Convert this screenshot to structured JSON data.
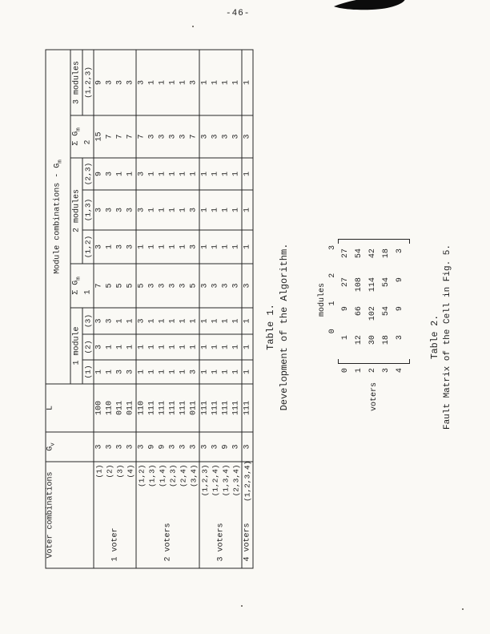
{
  "page": {
    "number": "-46-"
  },
  "table1": {
    "caption": {
      "title": "Table 1.",
      "subtitle": "Development of the Algorithm."
    },
    "header": {
      "voter_combinations": "Voter combinations",
      "gv_base": "G",
      "gv_sub": "v",
      "l": "L",
      "module_combinations_base": "Module combinations - G",
      "module_combinations_sub": "m",
      "one_module": "1 module",
      "two_modules": "2 modules",
      "three_modules": "3 modules",
      "sigma_base": "Σ G",
      "sigma_sub": "m",
      "sigma1_index": "1",
      "sigma2_index": "2",
      "subcols": [
        "(1)",
        "(2)",
        "(3)",
        "(1,2)",
        "(1,3)",
        "(2,3)",
        "(1,2,3)"
      ]
    },
    "groups": [
      {
        "label": "1 voter",
        "rows": [
          {
            "combo": "(1)",
            "gv": "3",
            "l": "100",
            "modules": [
              "1",
              "3",
              "3"
            ],
            "sum1": "7",
            "pairs": [
              "3",
              "3",
              "9"
            ],
            "sum2": "15",
            "triple": "9"
          },
          {
            "combo": "(2)",
            "gv": "3",
            "l": "110",
            "modules": [
              "1",
              "1",
              "3"
            ],
            "sum1": "5",
            "pairs": [
              "1",
              "3",
              "3"
            ],
            "sum2": "7",
            "triple": "3"
          },
          {
            "combo": "(3)",
            "gv": "3",
            "l": "011",
            "modules": [
              "3",
              "1",
              "1"
            ],
            "sum1": "5",
            "pairs": [
              "3",
              "3",
              "1"
            ],
            "sum2": "7",
            "triple": "3"
          },
          {
            "combo": "(4)",
            "gv": "3",
            "l": "011",
            "modules": [
              "3",
              "1",
              "1"
            ],
            "sum1": "5",
            "pairs": [
              "3",
              "3",
              "1"
            ],
            "sum2": "7",
            "triple": "3"
          }
        ]
      },
      {
        "label": "2 voters",
        "rows": [
          {
            "combo": "(1,2)",
            "gv": "3",
            "l": "110",
            "modules": [
              "1",
              "1",
              "3"
            ],
            "sum1": "5",
            "pairs": [
              "1",
              "3",
              "3"
            ],
            "sum2": "7",
            "triple": "3"
          },
          {
            "combo": "(1,3)",
            "gv": "9",
            "l": "111",
            "modules": [
              "1",
              "1",
              "1"
            ],
            "sum1": "3",
            "pairs": [
              "1",
              "1",
              "1"
            ],
            "sum2": "3",
            "triple": "1"
          },
          {
            "combo": "(1,4)",
            "gv": "9",
            "l": "111",
            "modules": [
              "1",
              "1",
              "1"
            ],
            "sum1": "3",
            "pairs": [
              "1",
              "1",
              "1"
            ],
            "sum2": "3",
            "triple": "1"
          },
          {
            "combo": "(2,3)",
            "gv": "3",
            "l": "111",
            "modules": [
              "1",
              "1",
              "1"
            ],
            "sum1": "3",
            "pairs": [
              "1",
              "1",
              "1"
            ],
            "sum2": "3",
            "triple": "1"
          },
          {
            "combo": "(2,4)",
            "gv": "3",
            "l": "111",
            "modules": [
              "1",
              "1",
              "1"
            ],
            "sum1": "3",
            "pairs": [
              "1",
              "1",
              "1"
            ],
            "sum2": "3",
            "triple": "1"
          },
          {
            "combo": "(3,4)",
            "gv": "3",
            "l": "011",
            "modules": [
              "3",
              "1",
              "1"
            ],
            "sum1": "5",
            "pairs": [
              "3",
              "3",
              "1"
            ],
            "sum2": "7",
            "triple": "3"
          }
        ]
      },
      {
        "label": "3 voters",
        "rows": [
          {
            "combo": "(1,2,3)",
            "gv": "3",
            "l": "111",
            "modules": [
              "1",
              "1",
              "1"
            ],
            "sum1": "3",
            "pairs": [
              "1",
              "1",
              "1"
            ],
            "sum2": "3",
            "triple": "1"
          },
          {
            "combo": "(1,2,4)",
            "gv": "3",
            "l": "111",
            "modules": [
              "1",
              "1",
              "1"
            ],
            "sum1": "3",
            "pairs": [
              "1",
              "1",
              "1"
            ],
            "sum2": "3",
            "triple": "1"
          },
          {
            "combo": "(1,3,4)",
            "gv": "9",
            "l": "111",
            "modules": [
              "1",
              "1",
              "1"
            ],
            "sum1": "3",
            "pairs": [
              "1",
              "1",
              "1"
            ],
            "sum2": "3",
            "triple": "1"
          },
          {
            "combo": "(2,3,4)",
            "gv": "3",
            "l": "111",
            "modules": [
              "1",
              "1",
              "1"
            ],
            "sum1": "3",
            "pairs": [
              "1",
              "1",
              "1"
            ],
            "sum2": "3",
            "triple": "1"
          }
        ]
      },
      {
        "label": "4 voters",
        "rows": [
          {
            "combo": "(1,2,3,4)",
            "gv": "3",
            "l": "111",
            "modules": [
              "1",
              "1",
              "1"
            ],
            "sum1": "3",
            "pairs": [
              "1",
              "1",
              "1"
            ],
            "sum2": "3",
            "triple": "1"
          }
        ]
      }
    ]
  },
  "table2": {
    "caption": {
      "title": "Table 2.",
      "subtitle": "Fault Matrix of the Cell in Fig. 5."
    },
    "col_group_label": "modules",
    "row_group_label": "voters",
    "col_headers": [
      "0",
      "1",
      "2",
      "3"
    ],
    "row_headers": [
      "0",
      "1",
      "2",
      "3",
      "4"
    ],
    "matrix": [
      [
        "1",
        "9",
        "27",
        "27"
      ],
      [
        "12",
        "66",
        "108",
        "54"
      ],
      [
        "30",
        "102",
        "114",
        "42"
      ],
      [
        "18",
        "54",
        "54",
        "18"
      ],
      [
        "3",
        "9",
        "9",
        "3"
      ]
    ]
  }
}
